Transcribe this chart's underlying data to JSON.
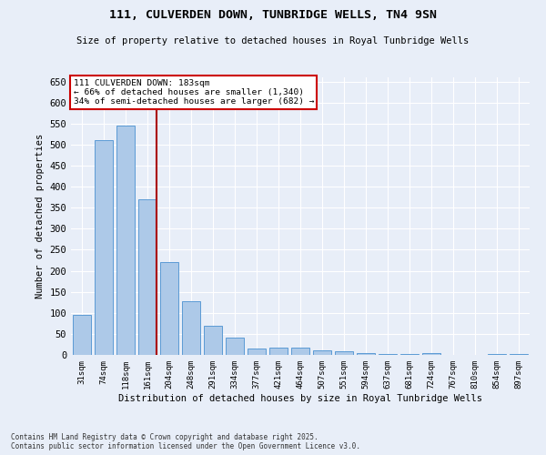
{
  "title": "111, CULVERDEN DOWN, TUNBRIDGE WELLS, TN4 9SN",
  "subtitle": "Size of property relative to detached houses in Royal Tunbridge Wells",
  "xlabel": "Distribution of detached houses by size in Royal Tunbridge Wells",
  "ylabel": "Number of detached properties",
  "footer": "Contains HM Land Registry data © Crown copyright and database right 2025.\nContains public sector information licensed under the Open Government Licence v3.0.",
  "categories": [
    "31sqm",
    "74sqm",
    "118sqm",
    "161sqm",
    "204sqm",
    "248sqm",
    "291sqm",
    "334sqm",
    "377sqm",
    "421sqm",
    "464sqm",
    "507sqm",
    "551sqm",
    "594sqm",
    "637sqm",
    "681sqm",
    "724sqm",
    "767sqm",
    "810sqm",
    "854sqm",
    "897sqm"
  ],
  "values": [
    95,
    510,
    545,
    370,
    220,
    128,
    70,
    42,
    15,
    18,
    17,
    10,
    8,
    4,
    3,
    2,
    4,
    1,
    0,
    2,
    3
  ],
  "bar_color": "#adc9e8",
  "bar_edge_color": "#5b9bd5",
  "background_color": "#e8eef8",
  "grid_color": "#ffffff",
  "vline_x_index": 3,
  "vline_color": "#aa0000",
  "annotation_text": "111 CULVERDEN DOWN: 183sqm\n← 66% of detached houses are smaller (1,340)\n34% of semi-detached houses are larger (682) →",
  "annotation_box_color": "#cc0000",
  "ylim": [
    0,
    660
  ],
  "yticks": [
    0,
    50,
    100,
    150,
    200,
    250,
    300,
    350,
    400,
    450,
    500,
    550,
    600,
    650
  ]
}
